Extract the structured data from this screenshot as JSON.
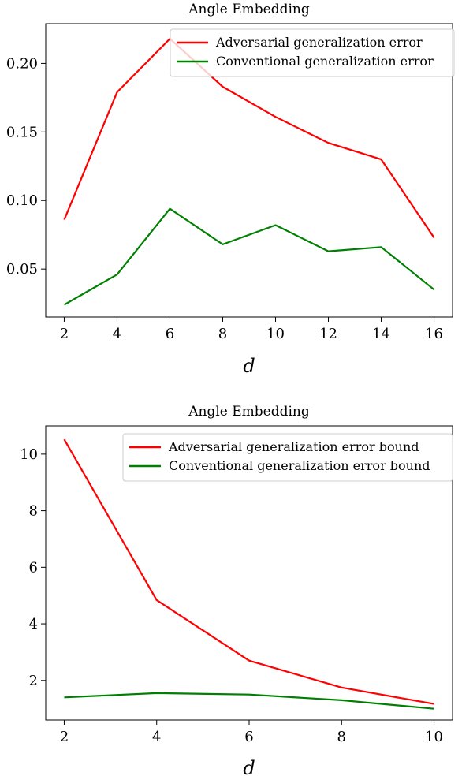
{
  "chart_data": [
    {
      "type": "line",
      "title": "Angle Embedding",
      "xlabel": "d",
      "ylabel": "",
      "x": [
        2,
        4,
        6,
        8,
        10,
        12,
        14,
        16
      ],
      "xlim": [
        1.3,
        16.7
      ],
      "ylim": [
        0.015,
        0.229
      ],
      "xticks": [
        2,
        4,
        6,
        8,
        10,
        12,
        14,
        16
      ],
      "yticks": [
        0.05,
        0.1,
        0.15,
        0.2
      ],
      "ytick_labels": [
        "0.05",
        "0.10",
        "0.15",
        "0.20"
      ],
      "legend_position": "top-right",
      "grid": false,
      "series": [
        {
          "name": "Adversarial generalization error",
          "color": "#ff0000",
          "values": [
            0.086,
            0.179,
            0.218,
            0.183,
            0.161,
            0.142,
            0.13,
            0.073
          ]
        },
        {
          "name": "Conventional generalization error",
          "color": "#008000",
          "values": [
            0.024,
            0.046,
            0.094,
            0.068,
            0.082,
            0.063,
            0.066,
            0.035
          ]
        }
      ]
    },
    {
      "type": "line",
      "title": "Angle Embedding",
      "xlabel": "d",
      "ylabel": "",
      "x": [
        2,
        4,
        6,
        8,
        10
      ],
      "xlim": [
        1.6,
        10.4
      ],
      "ylim": [
        0.6,
        11.0
      ],
      "xticks": [
        2,
        4,
        6,
        8,
        10
      ],
      "yticks": [
        2,
        4,
        6,
        8,
        10
      ],
      "ytick_labels": [
        "2",
        "4",
        "6",
        "8",
        "10"
      ],
      "legend_position": "top-right",
      "grid": false,
      "series": [
        {
          "name": "Adversarial generalization error bound",
          "color": "#ff0000",
          "values": [
            10.52,
            4.84,
            2.7,
            1.75,
            1.17
          ]
        },
        {
          "name": "Conventional generalization error bound",
          "color": "#008000",
          "values": [
            1.4,
            1.55,
            1.5,
            1.3,
            1.0
          ]
        }
      ]
    }
  ]
}
